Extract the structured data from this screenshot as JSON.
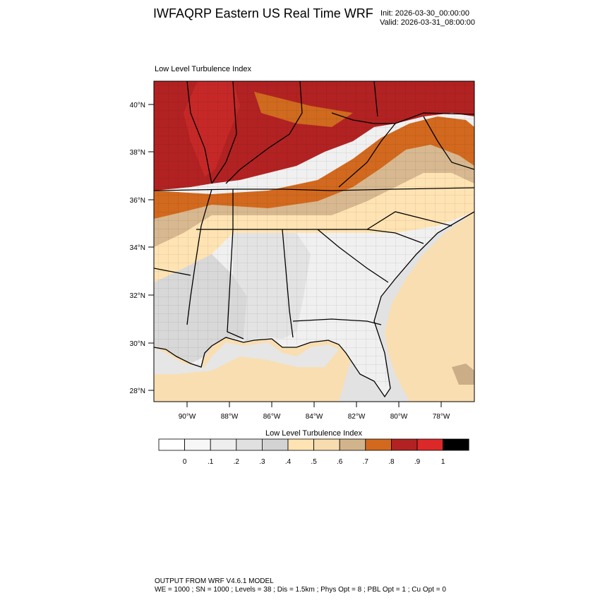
{
  "header": {
    "title": "IWFAQRP Eastern US Real Time WRF",
    "init": "Init: 2026-03-30_00:00:00",
    "valid": "Valid: 2026-03-31_08:00:00"
  },
  "map": {
    "field_label": "Low Level Turbulence Index",
    "lat_ticks": [
      "40°N",
      "38°N",
      "36°N",
      "34°N",
      "32°N",
      "30°N",
      "28°N"
    ],
    "lon_ticks": [
      "90°W",
      "88°W",
      "86°W",
      "84°W",
      "82°W",
      "80°W",
      "78°W"
    ]
  },
  "colorbar": {
    "title": "Low Level Turbulence Index",
    "colors": [
      "#ffffff",
      "#f7f7f7",
      "#eeeeee",
      "#e0e0e0",
      "#d3d3d3",
      "#ffe3b3",
      "#f7dcb0",
      "#d2b48c",
      "#d2691e",
      "#b22222",
      "#dc2828",
      "#000000"
    ],
    "labels": [
      "0",
      ".1",
      ".2",
      ".3",
      ".4",
      ".5",
      ".6",
      ".7",
      ".8",
      ".9",
      "1"
    ]
  },
  "footer": {
    "line1": "OUTPUT FROM WRF V4.6.1 MODEL",
    "line2": "WE = 1000 ; SN = 1000 ; Levels = 38 ; Dis = 1.5km ; Phys Opt = 8 ; PBL Opt = 1 ; Cu Opt = 0"
  }
}
